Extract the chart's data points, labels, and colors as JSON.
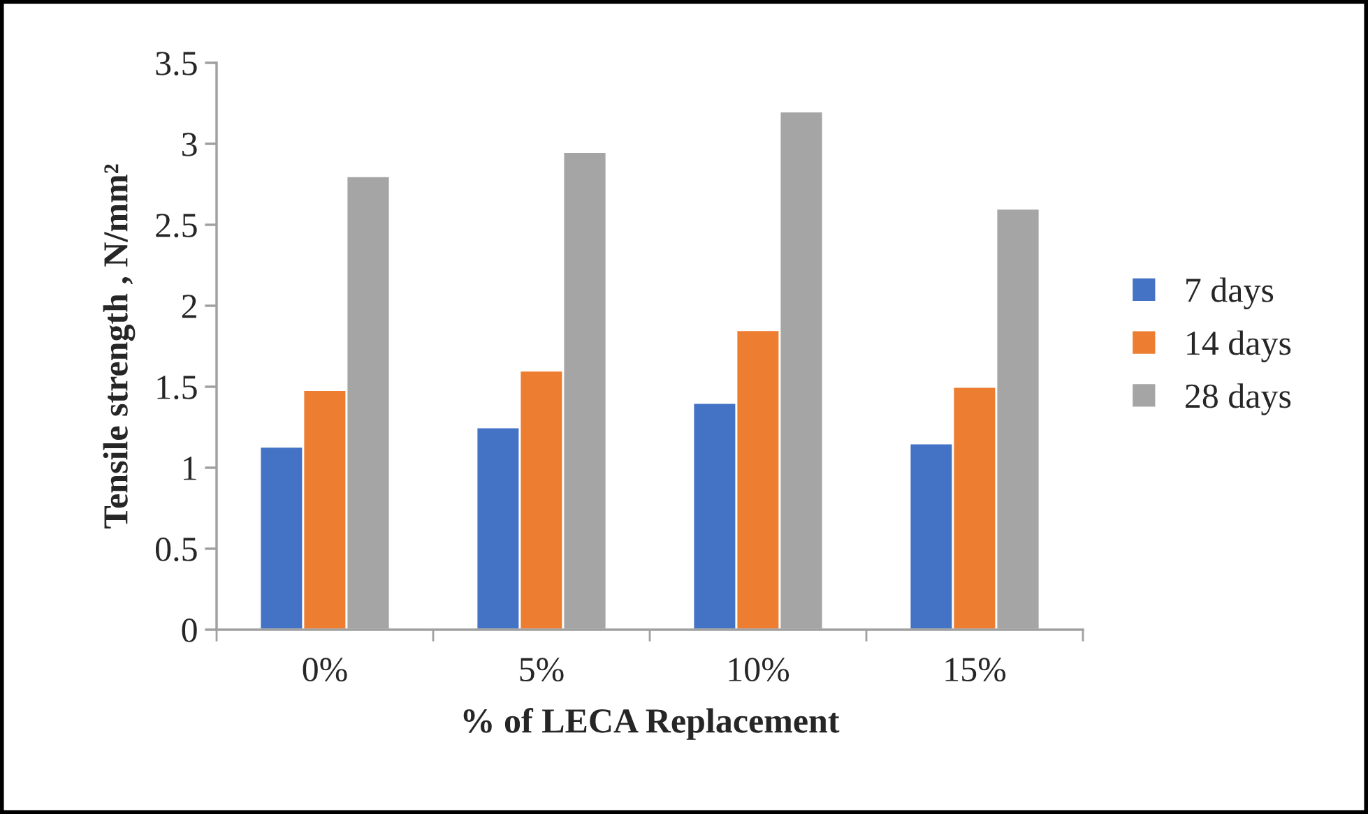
{
  "chart_data": {
    "type": "bar",
    "xlabel": "% of LECA Replacement",
    "ylabel": "Tensile strength , N/mm²",
    "categories": [
      "0%",
      "5%",
      "10%",
      "15%"
    ],
    "series": [
      {
        "name": "7 days",
        "color": "#4472c4",
        "values": [
          1.13,
          1.25,
          1.4,
          1.15
        ]
      },
      {
        "name": "14 days",
        "color": "#ed7d31",
        "values": [
          1.48,
          1.6,
          1.85,
          1.5
        ]
      },
      {
        "name": "28 days",
        "color": "#a5a5a5",
        "values": [
          2.8,
          2.95,
          3.2,
          2.6
        ]
      }
    ],
    "ylim": [
      0,
      3.5
    ],
    "yticks": [
      0,
      0.5,
      1,
      1.5,
      2,
      2.5,
      3,
      3.5
    ],
    "grid": false,
    "legend": "right"
  }
}
